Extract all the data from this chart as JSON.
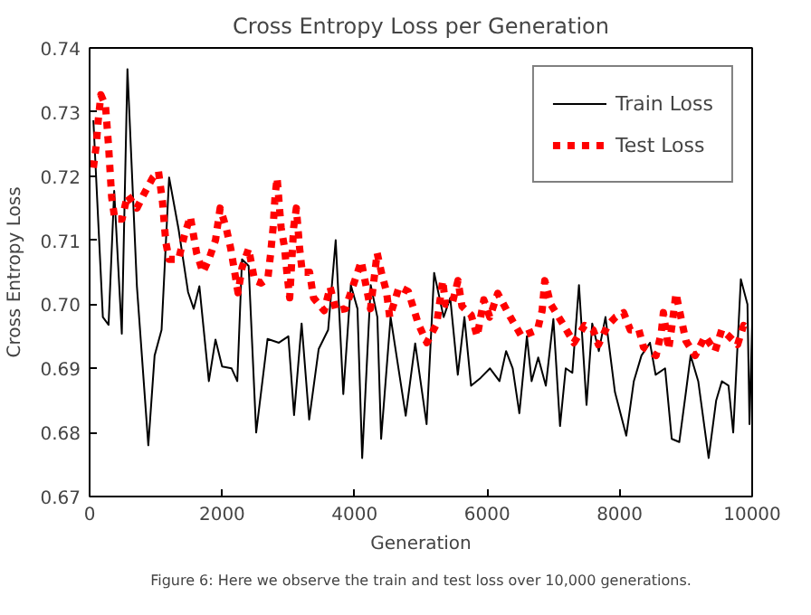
{
  "chart_data": {
    "type": "line",
    "title": "Cross Entropy Loss per Generation",
    "xlabel": "Generation",
    "ylabel": "Cross Entropy Loss",
    "annotations": [
      "Figure 6: Here we observe the train and test loss over 10,000 generations."
    ],
    "xlim": [
      0,
      10000
    ],
    "ylim": [
      0.67,
      0.74
    ],
    "xticks": [
      0,
      2000,
      4000,
      6000,
      8000,
      10000
    ],
    "yticks": [
      0.67,
      0.68,
      0.69,
      {
        "value": 0.7,
        "label": "0.70"
      },
      0.71,
      0.72,
      0.73,
      0.74
    ],
    "grid": false,
    "legend": "top right",
    "series": [
      {
        "name": "Train Loss",
        "color": "#000000",
        "line_style": "solid",
        "x": [
          57,
          200,
          286,
          371,
          486,
          571,
          714,
          886,
          981,
          1086,
          1200,
          1343,
          1486,
          1571,
          1657,
          1800,
          1900,
          2000,
          2143,
          2229,
          2300,
          2400,
          2514,
          2686,
          2857,
          3000,
          3086,
          3200,
          3314,
          3457,
          3600,
          3714,
          3829,
          3943,
          4043,
          4114,
          4243,
          4343,
          4400,
          4543,
          4771,
          4914,
          5086,
          5200,
          5343,
          5443,
          5557,
          5657,
          5757,
          5900,
          6043,
          6186,
          6286,
          6386,
          6486,
          6600,
          6671,
          6771,
          6886,
          7000,
          7100,
          7186,
          7286,
          7386,
          7500,
          7586,
          7686,
          7786,
          7929,
          8100,
          8214,
          8329,
          8457,
          8543,
          8686,
          8786,
          8900,
          9000,
          9071,
          9186,
          9343,
          9457,
          9543,
          9643,
          9714,
          9829,
          9929,
          9960,
          10000
        ],
        "values": [
          0.7287,
          0.698,
          0.6968,
          0.7177,
          0.6954,
          0.7367,
          0.7028,
          0.678,
          0.692,
          0.696,
          0.7198,
          0.7117,
          0.7019,
          0.6993,
          0.7028,
          0.688,
          0.6945,
          0.6903,
          0.69,
          0.688,
          0.707,
          0.706,
          0.68,
          0.6946,
          0.694,
          0.695,
          0.6827,
          0.697,
          0.682,
          0.693,
          0.696,
          0.71,
          0.686,
          0.703,
          0.6993,
          0.676,
          0.703,
          0.698,
          0.679,
          0.698,
          0.6826,
          0.6939,
          0.6813,
          0.7049,
          0.698,
          0.701,
          0.689,
          0.698,
          0.6873,
          0.6885,
          0.69,
          0.688,
          0.6927,
          0.69,
          0.683,
          0.695,
          0.688,
          0.6917,
          0.6873,
          0.6977,
          0.681,
          0.69,
          0.6893,
          0.703,
          0.6843,
          0.697,
          0.6927,
          0.698,
          0.6863,
          0.6795,
          0.688,
          0.692,
          0.694,
          0.689,
          0.69,
          0.679,
          0.6785,
          0.6863,
          0.692,
          0.688,
          0.676,
          0.685,
          0.688,
          0.6873,
          0.68,
          0.7039,
          0.7,
          0.6813,
          0.697
        ]
      },
      {
        "name": "Test Loss",
        "color": "#ff0000",
        "line_style": "dashed",
        "x": [
          57,
          100,
          130,
          170,
          240,
          286,
          333,
          380,
          490,
          571,
          714,
          810,
          950,
          1040,
          1100,
          1150,
          1200,
          1343,
          1430,
          1520,
          1615,
          1710,
          1800,
          1900,
          1970,
          2060,
          2130,
          2190,
          2240,
          2300,
          2400,
          2490,
          2590,
          2690,
          2730,
          2770,
          2800,
          2830,
          2890,
          2940,
          2980,
          3020,
          3080,
          3120,
          3170,
          3210,
          3320,
          3380,
          3540,
          3630,
          3720,
          3860,
          3970,
          4100,
          4240,
          4340,
          4410,
          4480,
          4530,
          4670,
          4810,
          4960,
          5090,
          5240,
          5330,
          5370,
          5470,
          5560,
          5620,
          5760,
          5850,
          5950,
          6040,
          6160,
          6350,
          6520,
          6760,
          6830,
          6870,
          6960,
          7140,
          7310,
          7470,
          7600,
          7680,
          7820,
          7940,
          8060,
          8160,
          8290,
          8360,
          8550,
          8630,
          8660,
          8740,
          8790,
          8850,
          8930,
          9000,
          9140,
          9290,
          9440,
          9540,
          9650,
          9780,
          9870,
          9960
        ],
        "values": [
          0.7213,
          0.7248,
          0.7287,
          0.7327,
          0.731,
          0.7247,
          0.7167,
          0.7133,
          0.7133,
          0.717,
          0.715,
          0.717,
          0.7197,
          0.7207,
          0.716,
          0.7097,
          0.707,
          0.707,
          0.7107,
          0.7137,
          0.708,
          0.705,
          0.707,
          0.71,
          0.715,
          0.712,
          0.7087,
          0.705,
          0.7018,
          0.7057,
          0.7087,
          0.7037,
          0.7033,
          0.704,
          0.7077,
          0.712,
          0.717,
          0.7197,
          0.712,
          0.709,
          0.7047,
          0.701,
          0.712,
          0.715,
          0.7087,
          0.705,
          0.705,
          0.701,
          0.699,
          0.7027,
          0.699,
          0.6993,
          0.7027,
          0.7067,
          0.6993,
          0.708,
          0.7047,
          0.702,
          0.698,
          0.7027,
          0.702,
          0.697,
          0.694,
          0.697,
          0.7037,
          0.7,
          0.7,
          0.7037,
          0.6997,
          0.6983,
          0.695,
          0.7007,
          0.698,
          0.7017,
          0.698,
          0.695,
          0.696,
          0.699,
          0.7037,
          0.7,
          0.697,
          0.694,
          0.6967,
          0.696,
          0.6937,
          0.6967,
          0.698,
          0.6987,
          0.696,
          0.696,
          0.6933,
          0.692,
          0.6957,
          0.6987,
          0.693,
          0.6967,
          0.7017,
          0.6977,
          0.6943,
          0.692,
          0.695,
          0.6927,
          0.696,
          0.695,
          0.6937,
          0.6967,
          0.696
        ]
      }
    ]
  }
}
